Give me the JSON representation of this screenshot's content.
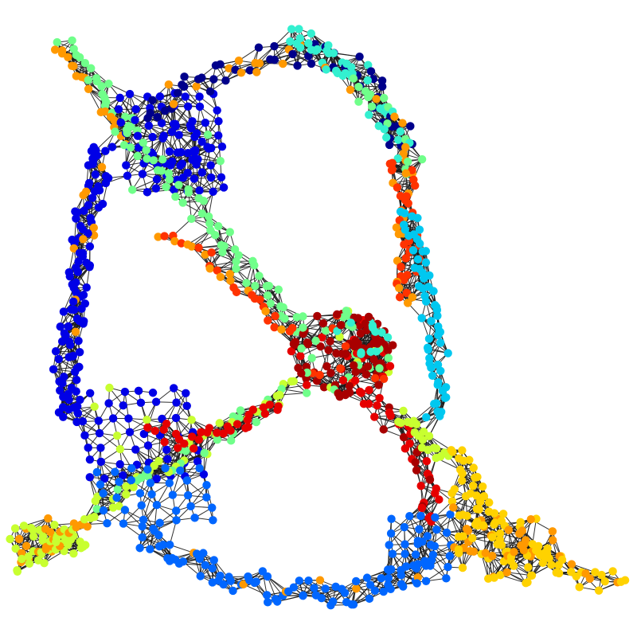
{
  "figure": {
    "kind": "node-link graph",
    "background": "#ffffff",
    "edge_color": "#1a1a1a",
    "node_colormap": "jet",
    "community_colors": {
      "navy": "#00008b",
      "blue": "#0000e6",
      "azure": "#0066ff",
      "sky": "#00c8f0",
      "cyan": "#33f0d0",
      "mint": "#70ff8a",
      "lime": "#c8ff30",
      "yellow": "#ffd200",
      "orange": "#ff9900",
      "redorange": "#ff3300",
      "red": "#e60000",
      "darkred": "#a80000"
    }
  }
}
